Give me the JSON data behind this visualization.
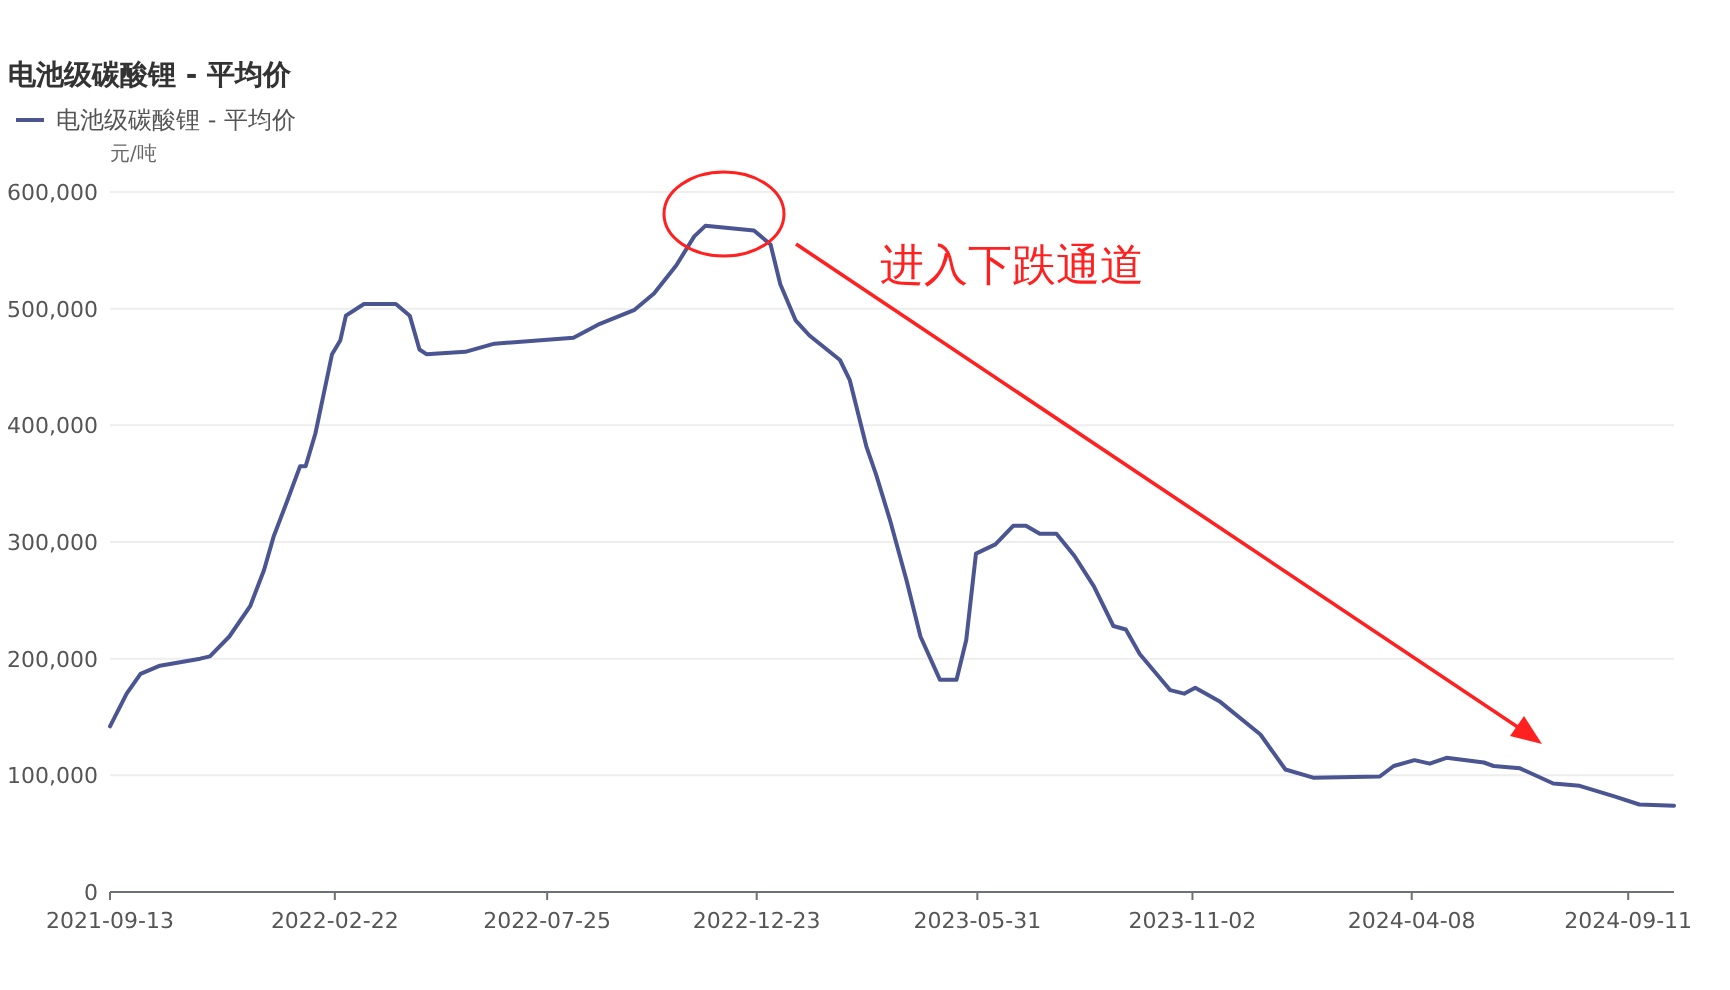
{
  "chart_data": {
    "type": "line",
    "title": "电池级碳酸锂 - 平均价",
    "ylabel": "元/吨",
    "legend": "top left",
    "grid": "y",
    "annotations": [
      "进入下跌通道"
    ],
    "xlim": [
      "2021-09-13",
      "2024-10-14"
    ],
    "xticks": [
      "2021-09-13",
      "2022-02-22",
      "2022-07-25",
      "2022-12-23",
      "2023-05-31",
      "2023-11-02",
      "2024-04-08",
      "2024-09-11"
    ],
    "ylim": [
      0,
      600000
    ],
    "yticks": [
      {
        "value": 0,
        "label": "0"
      },
      {
        "value": 100000,
        "label": "100,000"
      },
      {
        "value": 200000,
        "label": "200,000"
      },
      {
        "value": 300000,
        "label": "300,000"
      },
      {
        "value": 400000,
        "label": "400,000"
      },
      {
        "value": 500000,
        "label": "500,000"
      },
      {
        "value": 600000,
        "label": "600,000"
      }
    ],
    "series": [
      {
        "name": "电池级碳酸锂 - 平均价",
        "color": "#4a5591",
        "x": [
          "2021-09-13",
          "2021-09-25",
          "2021-10-05",
          "2021-10-19",
          "2021-11-17",
          "2021-11-24",
          "2021-12-08",
          "2021-12-23",
          "2022-01-02",
          "2022-01-09",
          "2022-01-18",
          "2022-01-28",
          "2022-02-01",
          "2022-02-08",
          "2022-02-14",
          "2022-02-20",
          "2022-02-26",
          "2022-03-02",
          "2022-03-15",
          "2022-04-07",
          "2022-04-17",
          "2022-04-24",
          "2022-04-29",
          "2022-05-27",
          "2022-06-17",
          "2022-08-13",
          "2022-09-01",
          "2022-09-26",
          "2022-10-10",
          "2022-10-26",
          "2022-11-08",
          "2022-11-16",
          "2022-12-21",
          "2023-01-02",
          "2023-01-09",
          "2023-01-20",
          "2023-01-30",
          "2023-02-21",
          "2023-02-28",
          "2023-03-12",
          "2023-03-19",
          "2023-03-29",
          "2023-04-10",
          "2023-04-20",
          "2023-05-04",
          "2023-05-16",
          "2023-05-23",
          "2023-05-30",
          "2023-06-13",
          "2023-06-26",
          "2023-07-05",
          "2023-07-15",
          "2023-07-27",
          "2023-08-09",
          "2023-08-23",
          "2023-09-06",
          "2023-09-15",
          "2023-09-25",
          "2023-10-17",
          "2023-10-27",
          "2023-11-04",
          "2023-11-22",
          "2023-12-21",
          "2024-01-08",
          "2024-01-28",
          "2024-03-16",
          "2024-03-26",
          "2024-04-10",
          "2024-04-21",
          "2024-05-03",
          "2024-05-30",
          "2024-06-06",
          "2024-06-25",
          "2024-07-19",
          "2024-08-07",
          "2024-09-01",
          "2024-09-19",
          "2024-10-14"
        ],
        "values": [
          142000,
          170000,
          187000,
          194000,
          200000,
          202000,
          219000,
          245000,
          276000,
          305000,
          333000,
          365000,
          365000,
          393000,
          427000,
          461000,
          473000,
          494000,
          504000,
          504000,
          494000,
          465000,
          461000,
          463000,
          470000,
          475000,
          487000,
          499000,
          513000,
          537000,
          562000,
          571000,
          567000,
          555000,
          521000,
          490000,
          477000,
          456000,
          439000,
          382000,
          358000,
          319000,
          267000,
          219000,
          182000,
          182000,
          216000,
          290000,
          298000,
          314000,
          314000,
          307000,
          307000,
          288000,
          262000,
          228000,
          225000,
          204000,
          173000,
          170000,
          175000,
          163000,
          135000,
          105000,
          98000,
          99000,
          108000,
          113000,
          110000,
          115000,
          111000,
          108000,
          106000,
          93000,
          91000,
          82000,
          75000,
          74000
        ]
      }
    ]
  }
}
